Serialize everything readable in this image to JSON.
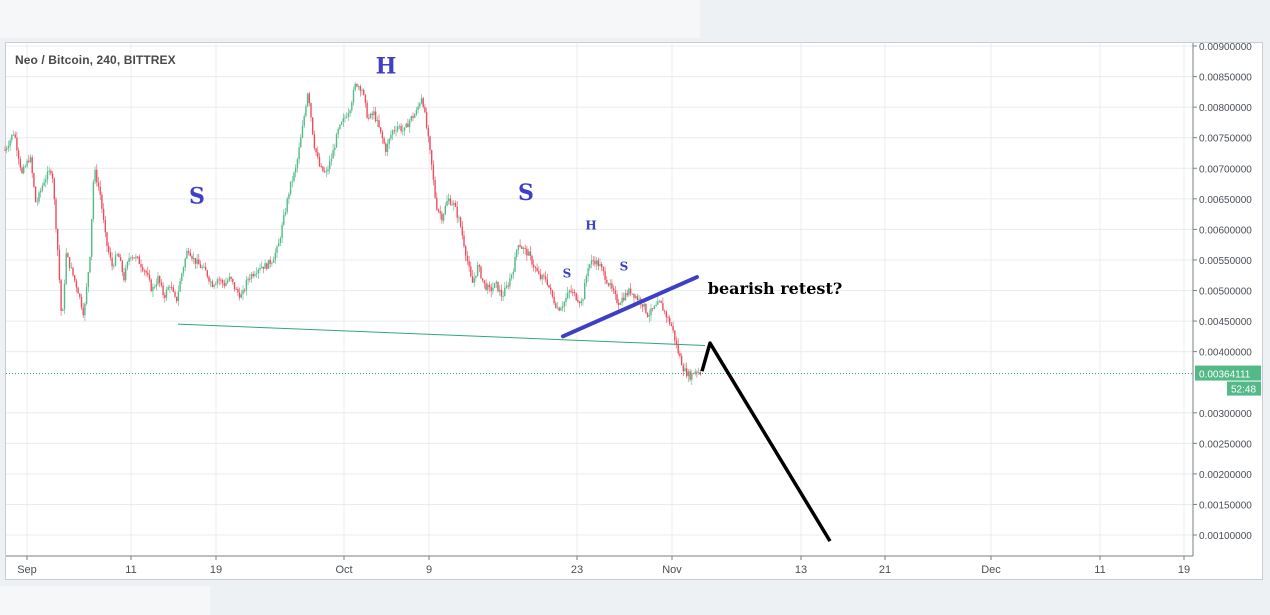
{
  "chart_data": {
    "type": "candlestick",
    "title": "Neo / Bitcoin, 240, BITTREX",
    "x_labels": [
      "Sep",
      "11",
      "19",
      "Oct",
      "9",
      "23",
      "Nov",
      "13",
      "21",
      "Dec",
      "11",
      "19"
    ],
    "y_ticks": [
      "0.00900000",
      "0.00850000",
      "0.00800000",
      "0.00750000",
      "0.00700000",
      "0.00650000",
      "0.00600000",
      "0.00550000",
      "0.00500000",
      "0.00450000",
      "0.00400000",
      "0.00300000",
      "0.00250000",
      "0.00200000",
      "0.00150000",
      "0.00100000"
    ],
    "ylim": [
      0.00078,
      0.00908
    ],
    "last_price": "0.00364111",
    "countdown": "52:48",
    "grid": true,
    "colors": {
      "up": "#53b987",
      "down": "#eb4d5c",
      "annotation": "#3d3fc4",
      "arrow": "#000000",
      "neckline": "#2fa67f",
      "price_line": "#2fa67f"
    },
    "price_path": [
      [
        5,
        0.0073
      ],
      [
        14,
        0.0076
      ],
      [
        22,
        0.0069
      ],
      [
        30,
        0.0072
      ],
      [
        36,
        0.0064
      ],
      [
        44,
        0.0068
      ],
      [
        52,
        0.007
      ],
      [
        58,
        0.0056
      ],
      [
        62,
        0.0044
      ],
      [
        66,
        0.0056
      ],
      [
        72,
        0.0053
      ],
      [
        78,
        0.005
      ],
      [
        84,
        0.0046
      ],
      [
        90,
        0.0056
      ],
      [
        94,
        0.007
      ],
      [
        100,
        0.0066
      ],
      [
        106,
        0.0058
      ],
      [
        112,
        0.0054
      ],
      [
        118,
        0.0056
      ],
      [
        124,
        0.0052
      ],
      [
        130,
        0.0056
      ],
      [
        138,
        0.0055
      ],
      [
        146,
        0.0053
      ],
      [
        152,
        0.005
      ],
      [
        158,
        0.0052
      ],
      [
        164,
        0.0049
      ],
      [
        170,
        0.0051
      ],
      [
        176,
        0.0048
      ],
      [
        182,
        0.0053
      ],
      [
        188,
        0.0057
      ],
      [
        194,
        0.0055
      ],
      [
        200,
        0.0054
      ],
      [
        206,
        0.0053
      ],
      [
        212,
        0.0051
      ],
      [
        218,
        0.0052
      ],
      [
        224,
        0.0051
      ],
      [
        230,
        0.0052
      ],
      [
        236,
        0.005
      ],
      [
        242,
        0.0049
      ],
      [
        248,
        0.0052
      ],
      [
        254,
        0.0053
      ],
      [
        260,
        0.0054
      ],
      [
        266,
        0.0054
      ],
      [
        272,
        0.0055
      ],
      [
        278,
        0.0057
      ],
      [
        284,
        0.0062
      ],
      [
        290,
        0.0067
      ],
      [
        296,
        0.007
      ],
      [
        302,
        0.0076
      ],
      [
        308,
        0.0083
      ],
      [
        314,
        0.0074
      ],
      [
        320,
        0.007
      ],
      [
        326,
        0.0069
      ],
      [
        332,
        0.0072
      ],
      [
        338,
        0.0076
      ],
      [
        344,
        0.0078
      ],
      [
        350,
        0.008
      ],
      [
        356,
        0.0084
      ],
      [
        362,
        0.0083
      ],
      [
        368,
        0.0078
      ],
      [
        374,
        0.0079
      ],
      [
        380,
        0.0076
      ],
      [
        386,
        0.0073
      ],
      [
        392,
        0.0076
      ],
      [
        398,
        0.0077
      ],
      [
        404,
        0.0076
      ],
      [
        410,
        0.0078
      ],
      [
        416,
        0.0079
      ],
      [
        422,
        0.0082
      ],
      [
        428,
        0.0075
      ],
      [
        432,
        0.007
      ],
      [
        436,
        0.0064
      ],
      [
        442,
        0.0062
      ],
      [
        448,
        0.0065
      ],
      [
        454,
        0.0064
      ],
      [
        460,
        0.0061
      ],
      [
        466,
        0.0056
      ],
      [
        472,
        0.0051
      ],
      [
        478,
        0.0054
      ],
      [
        484,
        0.0051
      ],
      [
        490,
        0.005
      ],
      [
        496,
        0.0051
      ],
      [
        502,
        0.0049
      ],
      [
        508,
        0.0051
      ],
      [
        514,
        0.0054
      ],
      [
        518,
        0.0058
      ],
      [
        522,
        0.0057
      ],
      [
        528,
        0.0056
      ],
      [
        534,
        0.0054
      ],
      [
        540,
        0.0052
      ],
      [
        546,
        0.0052
      ],
      [
        552,
        0.0049
      ],
      [
        558,
        0.0047
      ],
      [
        564,
        0.0048
      ],
      [
        570,
        0.005
      ],
      [
        576,
        0.0049
      ],
      [
        582,
        0.0048
      ],
      [
        588,
        0.0054
      ],
      [
        594,
        0.0055
      ],
      [
        600,
        0.0054
      ],
      [
        606,
        0.0052
      ],
      [
        612,
        0.005
      ],
      [
        618,
        0.0048
      ],
      [
        624,
        0.0049
      ],
      [
        630,
        0.005
      ],
      [
        636,
        0.0049
      ],
      [
        642,
        0.0048
      ],
      [
        648,
        0.0046
      ],
      [
        654,
        0.0047
      ],
      [
        660,
        0.0048
      ],
      [
        666,
        0.0046
      ],
      [
        672,
        0.0044
      ],
      [
        678,
        0.004
      ],
      [
        684,
        0.0037
      ],
      [
        690,
        0.0036
      ],
      [
        696,
        0.0037
      ],
      [
        702,
        0.00364
      ]
    ],
    "annotations": [
      {
        "label": "S",
        "x": 197,
        "y": 0.00642,
        "size": 22
      },
      {
        "label": "H",
        "x": 386,
        "y": 0.00855,
        "size": 22
      },
      {
        "label": "S",
        "x": 526,
        "y": 0.00648,
        "size": 22
      },
      {
        "label": "S",
        "x": 567,
        "y": 0.00521,
        "size": 12
      },
      {
        "label": "H",
        "x": 591,
        "y": 0.006,
        "size": 12
      },
      {
        "label": "S",
        "x": 624,
        "y": 0.00533,
        "size": 12
      },
      {
        "label": "bearish retest?",
        "x": 775,
        "y": 0.00494,
        "size": 16
      }
    ],
    "neckline": [
      [
        178,
        0.00445
      ],
      [
        705,
        0.0041
      ]
    ],
    "trendline": [
      [
        563,
        0.00425
      ],
      [
        697,
        0.00522
      ]
    ],
    "arrow": [
      [
        702,
        0.00368
      ],
      [
        710,
        0.00414
      ],
      [
        830,
        0.0009
      ]
    ]
  }
}
